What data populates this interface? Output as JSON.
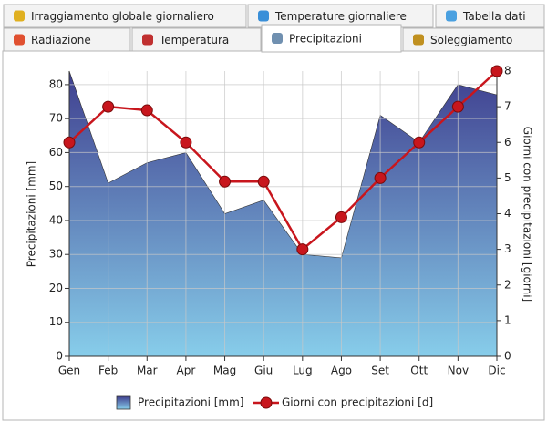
{
  "tabs": {
    "rows": [
      [
        {
          "label": "Irraggiamento globale giornaliero"
        },
        {
          "label": "Temperature giornaliere"
        },
        {
          "label": "Tabella dati"
        }
      ],
      [
        {
          "label": "Radiazione"
        },
        {
          "label": "Temperatura"
        },
        {
          "label": "Precipitazioni",
          "selected": true
        },
        {
          "label": "Soleggiamento"
        }
      ]
    ]
  },
  "chart_data": {
    "type": "area_line",
    "ylabel": "Precipitazioni [mm]",
    "y2label": "Giorni con precipitazioni [giorni]",
    "categories": [
      "Gen",
      "Feb",
      "Mar",
      "Apr",
      "Mag",
      "Giu",
      "Lug",
      "Ago",
      "Set",
      "Ott",
      "Nov",
      "Dic"
    ],
    "series": [
      {
        "name": "Precipitazioni [mm]",
        "type": "area",
        "color": "#3f3f8f",
        "color2": "#87cdea",
        "values": [
          84,
          51,
          57,
          60,
          42,
          46,
          30,
          29,
          71,
          63,
          80,
          77
        ]
      },
      {
        "name": "Giorni con precipitazioni [d]",
        "type": "line",
        "axis": "y2",
        "color": "#c8161d",
        "values": [
          6,
          7,
          6.9,
          6,
          4.9,
          4.9,
          3,
          3.9,
          5,
          6,
          7,
          8
        ]
      }
    ],
    "ylim": [
      0,
      84
    ],
    "yticks": [
      0,
      10,
      20,
      30,
      40,
      50,
      60,
      70,
      80
    ],
    "y2lim": [
      0,
      8
    ],
    "y2ticks": [
      0,
      1,
      2,
      3,
      4,
      5,
      6,
      7,
      8
    ],
    "grid": true,
    "legend": "bottom"
  }
}
